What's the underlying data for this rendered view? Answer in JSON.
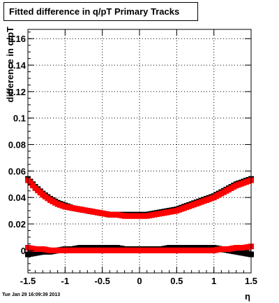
{
  "chart_data": {
    "type": "scatter",
    "title": "Fitted difference in q/pT  Primary Tracks",
    "xlabel": "η",
    "ylabel": "difference in q/pT",
    "xlim": [
      -1.5,
      1.5
    ],
    "ylim": [
      -0.017,
      0.167
    ],
    "x_ticks": [
      "-1.5",
      "-1",
      "-0.5",
      "0",
      "0.5",
      "1",
      "1.5"
    ],
    "y_ticks": [
      "0",
      "0.02",
      "0.04",
      "0.06",
      "0.08",
      "0.1",
      "0.12",
      "0.14",
      "0.16"
    ],
    "grid": true,
    "series": [
      {
        "color": "#000000",
        "marker": "square",
        "points": [
          [
            -1.5,
            0.054
          ],
          [
            -1.4,
            0.048
          ],
          [
            -1.3,
            0.043
          ],
          [
            -1.2,
            0.039
          ],
          [
            -1.1,
            0.036
          ],
          [
            -1.0,
            0.034
          ],
          [
            -0.9,
            0.032
          ],
          [
            -0.8,
            0.031
          ],
          [
            -0.7,
            0.03
          ],
          [
            -0.6,
            0.029
          ],
          [
            -0.5,
            0.028
          ],
          [
            -0.4,
            0.027
          ],
          [
            -0.3,
            0.027
          ],
          [
            -0.2,
            0.027
          ],
          [
            -0.1,
            0.027
          ],
          [
            0.0,
            0.027
          ],
          [
            0.1,
            0.027
          ],
          [
            0.2,
            0.028
          ],
          [
            0.3,
            0.029
          ],
          [
            0.4,
            0.03
          ],
          [
            0.5,
            0.031
          ],
          [
            0.6,
            0.033
          ],
          [
            0.7,
            0.035
          ],
          [
            0.8,
            0.037
          ],
          [
            0.9,
            0.039
          ],
          [
            1.0,
            0.041
          ],
          [
            1.1,
            0.044
          ],
          [
            1.2,
            0.047
          ],
          [
            1.3,
            0.05
          ],
          [
            1.4,
            0.052
          ],
          [
            1.5,
            0.054
          ],
          [
            -1.5,
            -0.003
          ],
          [
            -1.4,
            -0.002
          ],
          [
            -1.3,
            -0.001
          ],
          [
            -1.2,
            -0.001
          ],
          [
            -1.1,
            0.0
          ],
          [
            -1.0,
            0.001
          ],
          [
            -0.9,
            0.001
          ],
          [
            -0.8,
            0.002
          ],
          [
            -0.7,
            0.002
          ],
          [
            -0.6,
            0.002
          ],
          [
            -0.5,
            0.002
          ],
          [
            -0.4,
            0.002
          ],
          [
            -0.3,
            0.002
          ],
          [
            -0.2,
            0.001
          ],
          [
            -0.1,
            0.001
          ],
          [
            0.0,
            0.001
          ],
          [
            0.1,
            0.001
          ],
          [
            0.2,
            0.001
          ],
          [
            0.3,
            0.001
          ],
          [
            0.4,
            0.002
          ],
          [
            0.5,
            0.002
          ],
          [
            0.6,
            0.002
          ],
          [
            0.7,
            0.002
          ],
          [
            0.8,
            0.002
          ],
          [
            0.9,
            0.002
          ],
          [
            1.0,
            0.002
          ],
          [
            1.1,
            0.001
          ],
          [
            1.2,
            0.0
          ],
          [
            1.3,
            -0.001
          ],
          [
            1.4,
            -0.002
          ],
          [
            1.5,
            -0.003
          ]
        ]
      },
      {
        "color": "#ff0000",
        "marker": "square",
        "points": [
          [
            -1.5,
            0.053
          ],
          [
            -1.4,
            0.047
          ],
          [
            -1.3,
            0.042
          ],
          [
            -1.2,
            0.038
          ],
          [
            -1.1,
            0.035
          ],
          [
            -1.0,
            0.033
          ],
          [
            -0.9,
            0.032
          ],
          [
            -0.8,
            0.031
          ],
          [
            -0.7,
            0.03
          ],
          [
            -0.6,
            0.029
          ],
          [
            -0.5,
            0.028
          ],
          [
            -0.4,
            0.027
          ],
          [
            -0.3,
            0.027
          ],
          [
            -0.2,
            0.026
          ],
          [
            -0.1,
            0.026
          ],
          [
            0.0,
            0.026
          ],
          [
            0.1,
            0.026
          ],
          [
            0.2,
            0.027
          ],
          [
            0.3,
            0.028
          ],
          [
            0.4,
            0.029
          ],
          [
            0.5,
            0.03
          ],
          [
            0.6,
            0.032
          ],
          [
            0.7,
            0.034
          ],
          [
            0.8,
            0.036
          ],
          [
            0.9,
            0.038
          ],
          [
            1.0,
            0.04
          ],
          [
            1.1,
            0.043
          ],
          [
            1.2,
            0.046
          ],
          [
            1.3,
            0.049
          ],
          [
            1.4,
            0.051
          ],
          [
            1.5,
            0.053
          ],
          [
            -1.5,
            0.002
          ],
          [
            -1.4,
            0.001
          ],
          [
            -1.3,
            0.001
          ],
          [
            -1.2,
            0.0
          ],
          [
            -1.1,
            0.0
          ],
          [
            -1.0,
            0.0
          ],
          [
            -0.9,
            0.0
          ],
          [
            -0.8,
            0.0
          ],
          [
            -0.7,
            0.0
          ],
          [
            -0.6,
            0.0
          ],
          [
            -0.5,
            0.0
          ],
          [
            -0.4,
            0.0
          ],
          [
            -0.3,
            0.0
          ],
          [
            -0.2,
            0.0
          ],
          [
            -0.1,
            0.0
          ],
          [
            0.0,
            0.0
          ],
          [
            0.1,
            0.0
          ],
          [
            0.2,
            0.0
          ],
          [
            0.3,
            0.0
          ],
          [
            0.4,
            0.0
          ],
          [
            0.5,
            0.0
          ],
          [
            0.6,
            0.0
          ],
          [
            0.7,
            0.0
          ],
          [
            0.8,
            0.0
          ],
          [
            0.9,
            0.0
          ],
          [
            1.0,
            0.0
          ],
          [
            1.1,
            0.001
          ],
          [
            1.2,
            0.001
          ],
          [
            1.3,
            0.002
          ],
          [
            1.4,
            0.002
          ],
          [
            1.5,
            0.003
          ]
        ]
      }
    ]
  },
  "footer": {
    "timestamp": "Tue Jan 29 16:09:39 2013"
  }
}
